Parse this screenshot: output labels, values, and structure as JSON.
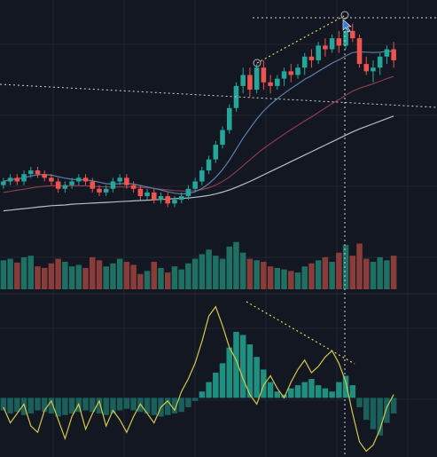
{
  "colors": {
    "background": "#131722",
    "grid": "#1f2533",
    "bull": "#26a69a",
    "bear": "#ef5350",
    "bull_volume": "#1f6f62",
    "bear_volume": "#8a3c3a",
    "hist_pos": "#1f8f7f",
    "hist_neg": "#1a5f5a",
    "signal_line": "#d6c84a",
    "ma_fast": "#5b7fa8",
    "ma_mid": "#8c3b4a",
    "ma_slow": "#b9bcc4",
    "drawing_dotted": "#cfd2d8",
    "trend_yellow": "#e5d35a",
    "marker": "#3a7bd5"
  },
  "icons": [
    "cursor-icon",
    "circle-marker-icon"
  ],
  "chart_data": {
    "type": "candlestick",
    "price": {
      "ohlc": [
        [
          40,
          42,
          39,
          41
        ],
        [
          41,
          43,
          40,
          42
        ],
        [
          42,
          43,
          40,
          41
        ],
        [
          41,
          44,
          40,
          43
        ],
        [
          43,
          45,
          42,
          44
        ],
        [
          44,
          45,
          42,
          43
        ],
        [
          43,
          44,
          41,
          42
        ],
        [
          42,
          43,
          40,
          41
        ],
        [
          41,
          42,
          38,
          39
        ],
        [
          39,
          41,
          38,
          40
        ],
        [
          40,
          42,
          39,
          41
        ],
        [
          41,
          43,
          40,
          42
        ],
        [
          42,
          43,
          40,
          41
        ],
        [
          41,
          42,
          38,
          39
        ],
        [
          39,
          40,
          37,
          38
        ],
        [
          38,
          40,
          37,
          39
        ],
        [
          39,
          42,
          38,
          41
        ],
        [
          41,
          43,
          40,
          42
        ],
        [
          42,
          43,
          39,
          40
        ],
        [
          40,
          41,
          38,
          39
        ],
        [
          39,
          40,
          36,
          37
        ],
        [
          37,
          39,
          36,
          38
        ],
        [
          38,
          39,
          35,
          36
        ],
        [
          36,
          38,
          35,
          37
        ],
        [
          37,
          38,
          34,
          35
        ],
        [
          35,
          37,
          34,
          36
        ],
        [
          36,
          38,
          35,
          37
        ],
        [
          37,
          40,
          36,
          39
        ],
        [
          39,
          42,
          38,
          41
        ],
        [
          41,
          45,
          40,
          44
        ],
        [
          44,
          48,
          43,
          47
        ],
        [
          47,
          52,
          46,
          51
        ],
        [
          51,
          56,
          50,
          55
        ],
        [
          55,
          62,
          54,
          61
        ],
        [
          61,
          68,
          60,
          67
        ],
        [
          67,
          72,
          65,
          70
        ],
        [
          70,
          72,
          64,
          66
        ],
        [
          66,
          73,
          65,
          72
        ],
        [
          72,
          74,
          66,
          68
        ],
        [
          68,
          70,
          65,
          67
        ],
        [
          67,
          70,
          66,
          69
        ],
        [
          69,
          72,
          67,
          71
        ],
        [
          71,
          73,
          68,
          70
        ],
        [
          70,
          73,
          69,
          72
        ],
        [
          72,
          76,
          70,
          75
        ],
        [
          75,
          77,
          72,
          74
        ],
        [
          74,
          79,
          73,
          78
        ],
        [
          78,
          80,
          75,
          77
        ],
        [
          77,
          81,
          76,
          80
        ],
        [
          80,
          82,
          76,
          78
        ],
        [
          78,
          83,
          77,
          82
        ],
        [
          82,
          84,
          79,
          80
        ],
        [
          80,
          81,
          72,
          73
        ],
        [
          73,
          75,
          70,
          71
        ],
        [
          71,
          74,
          68,
          72
        ],
        [
          72,
          76,
          70,
          75
        ],
        [
          75,
          78,
          73,
          77
        ],
        [
          77,
          79,
          72,
          74
        ]
      ],
      "ma_fast": [
        41,
        41.5,
        41.7,
        42,
        42.5,
        42.8,
        42.9,
        42.7,
        42.3,
        41.9,
        41.6,
        41.5,
        41.4,
        41.2,
        40.8,
        40.4,
        40.3,
        40.4,
        40.5,
        40.3,
        39.9,
        39.5,
        39.1,
        38.7,
        38.2,
        37.8,
        37.6,
        37.7,
        38.2,
        39.1,
        40.4,
        42.1,
        44.2,
        46.8,
        49.8,
        52.8,
        55.4,
        58,
        60.2,
        62,
        63.5,
        65,
        66.3,
        67.5,
        68.8,
        69.8,
        71,
        72.1,
        73.2,
        74.1,
        75.2,
        76.1,
        76.3,
        76.2,
        76.1,
        76.2,
        76.4,
        76.5
      ],
      "ma_mid": [
        38,
        38.3,
        38.6,
        38.9,
        39.2,
        39.5,
        39.7,
        39.8,
        39.8,
        39.8,
        39.8,
        39.8,
        39.8,
        39.7,
        39.6,
        39.5,
        39.5,
        39.5,
        39.5,
        39.5,
        39.4,
        39.3,
        39.1,
        38.9,
        38.7,
        38.5,
        38.4,
        38.4,
        38.5,
        38.8,
        39.3,
        40,
        41,
        42.2,
        43.7,
        45.3,
        46.9,
        48.5,
        50,
        51.3,
        52.6,
        53.9,
        55.1,
        56.3,
        57.5,
        58.6,
        59.8,
        61,
        62.2,
        63.3,
        64.5,
        65.6,
        66.4,
        67,
        67.6,
        68.3,
        69,
        69.6
      ],
      "ma_slow": [
        33,
        33.2,
        33.4,
        33.6,
        33.8,
        34,
        34.2,
        34.4,
        34.5,
        34.6,
        34.8,
        34.9,
        35,
        35.1,
        35.2,
        35.3,
        35.4,
        35.5,
        35.6,
        35.7,
        35.8,
        35.9,
        36,
        36.1,
        36.2,
        36.3,
        36.4,
        36.5,
        36.7,
        36.9,
        37.2,
        37.6,
        38.1,
        38.7,
        39.4,
        40.2,
        41,
        41.9,
        42.8,
        43.7,
        44.6,
        45.5,
        46.4,
        47.3,
        48.2,
        49.1,
        50,
        50.9,
        51.8,
        52.7,
        53.6,
        54.5,
        55.3,
        56,
        56.7,
        57.4,
        58.1,
        58.8
      ],
      "ylim": [
        30,
        88
      ]
    },
    "volume": {
      "values": [
        38,
        40,
        35,
        42,
        44,
        30,
        28,
        34,
        40,
        36,
        30,
        32,
        28,
        42,
        38,
        30,
        34,
        40,
        36,
        32,
        20,
        24,
        36,
        28,
        22,
        30,
        26,
        34,
        40,
        46,
        52,
        44,
        40,
        56,
        62,
        48,
        40,
        38,
        36,
        30,
        28,
        26,
        24,
        22,
        30,
        34,
        38,
        42,
        36,
        48,
        58,
        44,
        60,
        40,
        36,
        42,
        38,
        44
      ],
      "ylim": [
        0,
        100
      ]
    },
    "oscillator": {
      "histogram": [
        -8,
        -10,
        -9,
        -11,
        -10,
        -8,
        -9,
        -10,
        -12,
        -11,
        -10,
        -9,
        -8,
        -9,
        -10,
        -11,
        -10,
        -8,
        -7,
        -8,
        -9,
        -10,
        -11,
        -12,
        -11,
        -10,
        -9,
        -6,
        -2,
        4,
        10,
        16,
        22,
        32,
        42,
        40,
        34,
        26,
        18,
        10,
        4,
        2,
        6,
        8,
        10,
        12,
        8,
        6,
        4,
        10,
        14,
        8,
        -6,
        -14,
        -20,
        -24,
        -16,
        -10
      ],
      "signal": [
        -6,
        -16,
        -10,
        -4,
        -18,
        -22,
        -8,
        -2,
        -14,
        -26,
        -12,
        -4,
        -20,
        -10,
        -2,
        -18,
        -8,
        -14,
        -22,
        -12,
        -4,
        -10,
        -16,
        -6,
        -2,
        -8,
        4,
        12,
        22,
        36,
        52,
        58,
        46,
        32,
        24,
        12,
        2,
        -4,
        8,
        14,
        6,
        0,
        10,
        18,
        24,
        16,
        20,
        26,
        30,
        22,
        10,
        -10,
        -28,
        -34,
        -30,
        -20,
        -6,
        2
      ],
      "ylim": [
        -36,
        64
      ]
    }
  }
}
